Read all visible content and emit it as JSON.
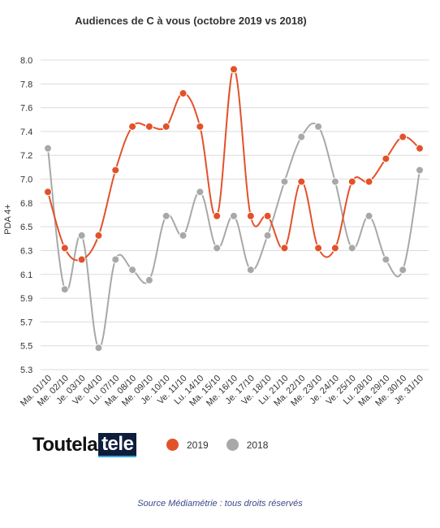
{
  "chart_data": {
    "type": "line",
    "title": "Audiences de C à vous (octobre 2019 vs 2018)",
    "xlabel": "",
    "ylabel": "PDA 4+",
    "categories": [
      "Ma. 01/10",
      "Me. 02/10",
      "Je. 03/10",
      "Ve. 04/10",
      "Lu. 07/10",
      "Ma. 08/10",
      "Me. 09/10",
      "Je. 10/10",
      "Ve. 11/10",
      "Lu. 14/10",
      "Ma. 15/10",
      "Me. 16/10",
      "Je. 17/10",
      "Ve. 18/10",
      "Lu. 21/10",
      "Ma. 22/10",
      "Me. 23/10",
      "Je. 24/10",
      "Ve. 25/10",
      "Lu. 28/10",
      "Ma. 29/10",
      "Me. 30/10",
      "Je. 31/10"
    ],
    "y_ticks": [
      "5.3",
      "5.5",
      "5.7",
      "5.9",
      "6.1",
      "6.3",
      "6.5",
      "6.8",
      "7.0",
      "7.2",
      "7.4",
      "7.6",
      "7.8",
      "8.0"
    ],
    "ylim": [
      5.3,
      8.0
    ],
    "grid": true,
    "legend_position": "bottom",
    "series": [
      {
        "name": "2019",
        "color": "#e2522a",
        "values": [
          6.85,
          6.36,
          6.26,
          6.47,
          7.04,
          7.42,
          7.42,
          7.42,
          7.71,
          7.42,
          6.64,
          7.92,
          6.64,
          6.64,
          6.36,
          6.94,
          6.36,
          6.36,
          6.94,
          6.94,
          7.14,
          7.33,
          7.23
        ]
      },
      {
        "name": "2018",
        "color": "#a8a8a8",
        "values": [
          7.23,
          6.0,
          6.47,
          5.49,
          6.26,
          6.17,
          6.08,
          6.64,
          6.47,
          6.85,
          6.36,
          6.64,
          6.17,
          6.47,
          6.94,
          7.33,
          7.42,
          6.94,
          6.36,
          6.64,
          6.26,
          6.17,
          7.04
        ]
      }
    ]
  },
  "brand": {
    "part1": "Toutela",
    "part2": "tele"
  },
  "source": "Source Médiamétrie : tous droits réservés"
}
